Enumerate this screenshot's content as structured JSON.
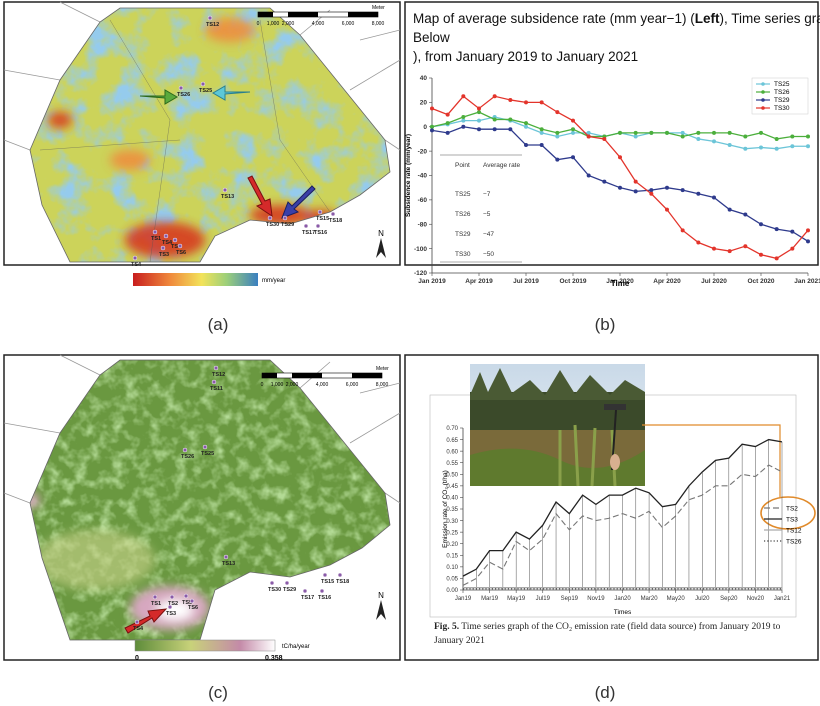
{
  "panel_labels": [
    "(a)",
    "(b)",
    "(c)",
    "(d)"
  ],
  "maps": [
    {
      "scale_bar": [
        "0",
        "1,000",
        "2,000",
        "4,000",
        "6,000",
        "8,000"
      ],
      "scale_unit": "Meter",
      "north": "N",
      "legend_unit": "mm/year",
      "points": [
        "TS12",
        "TS25",
        "TS26",
        "TS13",
        "TS30",
        "TS29",
        "TS15",
        "TS18",
        "TS17",
        "TS16",
        "TS1",
        "TS4",
        "TS2",
        "TS3",
        "TS6",
        "TS4"
      ]
    },
    {
      "scale_bar": [
        "0",
        "1,000",
        "2,000",
        "4,000",
        "6,000",
        "8,000"
      ],
      "scale_unit": "Meter",
      "north": "N",
      "legend_unit": "tC/ha/year",
      "colorbar_range": [
        0,
        0.358
      ],
      "points": [
        "TS12",
        "TS11",
        "TS26",
        "TS25",
        "TS13",
        "TS30",
        "TS29",
        "TS15",
        "TS18",
        "TS17",
        "TS16",
        "TS1",
        "TS2",
        "TS3",
        "TS5",
        "TS6",
        "TS4"
      ]
    }
  ],
  "chart_data": [
    {
      "type": "line",
      "title_parts": [
        "Map of average subsidence rate (mm year−1) (",
        "Left",
        "), Time series graph of the subsidence rate (",
        "Below",
        "), from January 2019 to January 2021"
      ],
      "ylabel": "Subsidence rate (mm/year)",
      "xlabel": "Time",
      "categories": [
        "Jan 2019",
        null,
        null,
        "Apr 2019",
        null,
        null,
        "Jul 2019",
        null,
        null,
        "Oct 2019",
        null,
        null,
        "Jan 2020",
        null,
        null,
        "Apr 2020",
        null,
        null,
        "Jul 2020",
        null,
        null,
        "Oct 2020",
        null,
        null,
        "Jan 2021"
      ],
      "series": [
        {
          "name": "TS25",
          "color": "#6cc5d8",
          "dash": "solid",
          "values": [
            0,
            2,
            5,
            5,
            8,
            5,
            0,
            -5,
            -8,
            -5,
            -5,
            -8,
            -5,
            -8,
            -5,
            -5,
            -5,
            -10,
            -12,
            -15,
            -18,
            -17,
            -18,
            -16,
            -16
          ]
        },
        {
          "name": "TS26",
          "color": "#4caf3c",
          "dash": "solid",
          "values": [
            0,
            3,
            8,
            12,
            6,
            6,
            3,
            -2,
            -5,
            -2,
            -8,
            -8,
            -5,
            -5,
            -5,
            -5,
            -8,
            -5,
            -5,
            -5,
            -8,
            -5,
            -10,
            -8,
            -8
          ]
        },
        {
          "name": "TS29",
          "color": "#2e3a8c",
          "dash": "solid",
          "values": [
            -3,
            -5,
            0,
            -2,
            -2,
            -2,
            -15,
            -15,
            -27,
            -25,
            -40,
            -45,
            -50,
            -53,
            -52,
            -50,
            -52,
            -55,
            -58,
            -68,
            -72,
            -80,
            -84,
            -86,
            -94
          ]
        },
        {
          "name": "TS30",
          "color": "#e3342b",
          "dash": "solid",
          "values": [
            15,
            10,
            25,
            15,
            25,
            22,
            20,
            20,
            12,
            5,
            -8,
            -10,
            -25,
            -45,
            -55,
            -68,
            -85,
            -95,
            -100,
            -102,
            -98,
            -105,
            -108,
            -100,
            -85
          ]
        }
      ],
      "markers": true,
      "ylim": [
        -120,
        40
      ],
      "yticks": [
        -120,
        -100,
        -80,
        -60,
        -40,
        -20,
        0,
        20,
        40
      ],
      "grid": false,
      "legend": "upper right",
      "table": {
        "header": [
          "Point",
          "Average rate"
        ],
        "rows": [
          [
            "TS25",
            "−7"
          ],
          [
            "TS26",
            "−5"
          ],
          [
            "TS29",
            "−47"
          ],
          [
            "TS30",
            "−50"
          ]
        ]
      }
    },
    {
      "type": "line",
      "ylabel": "Emission rate of CO₂ (t/ha)",
      "xlabel": "Times",
      "caption_label": "Fig. 5.",
      "caption": "Time series graph of the CO₂ emission rate (field data source) from January 2019 to January 2021",
      "categories": [
        "Jan19",
        null,
        "Mar19",
        null,
        "May19",
        null,
        "Jul19",
        null,
        "Sep19",
        null,
        "Nov19",
        null,
        "Jan20",
        null,
        "Mar20",
        null,
        "May20",
        null,
        "Jul20",
        null,
        "Sep20",
        null,
        "Nov20",
        null,
        "Jan21"
      ],
      "series": [
        {
          "name": "TS2",
          "color": "#777777",
          "dash": "dashed",
          "values": [
            0.02,
            0.05,
            0.12,
            0.09,
            0.21,
            0.17,
            0.22,
            0.33,
            0.26,
            0.32,
            0.3,
            0.31,
            0.33,
            0.31,
            0.34,
            0.27,
            0.32,
            0.39,
            0.41,
            0.45,
            0.45,
            0.5,
            0.49,
            0.54,
            0.51
          ]
        },
        {
          "name": "TS3",
          "color": "#222222",
          "dash": "solid",
          "values": [
            0.06,
            0.09,
            0.17,
            0.17,
            0.25,
            0.22,
            0.28,
            0.38,
            0.33,
            0.41,
            0.37,
            0.41,
            0.41,
            0.44,
            0.42,
            0.36,
            0.37,
            0.45,
            0.51,
            0.56,
            0.57,
            0.63,
            0.62,
            0.65,
            0.64
          ]
        },
        {
          "name": "TS12",
          "color": "#aaaaaa",
          "dash": "solid",
          "values": [
            0.01,
            0.01,
            0.01,
            0.01,
            0.01,
            0.01,
            0.01,
            0.01,
            0.01,
            0.01,
            0.01,
            0.01,
            0.01,
            0.01,
            0.01,
            0.01,
            0.01,
            0.01,
            0.01,
            0.01,
            0.01,
            0.01,
            0.01,
            0.01,
            0.01
          ]
        },
        {
          "name": "TS26",
          "color": "#444444",
          "dash": "dotted",
          "values": [
            0.005,
            0.005,
            0.005,
            0.005,
            0.005,
            0.005,
            0.005,
            0.005,
            0.005,
            0.005,
            0.005,
            0.005,
            0.005,
            0.005,
            0.005,
            0.005,
            0.005,
            0.005,
            0.005,
            0.005,
            0.005,
            0.005,
            0.005,
            0.005,
            0.005
          ]
        }
      ],
      "markers": false,
      "drop_lines": true,
      "ylim": [
        0,
        0.7
      ],
      "yticks": [
        {
          "value": 0,
          "label": "0.00"
        },
        {
          "value": 0.05,
          "label": "0.05"
        },
        {
          "value": 0.1,
          "label": "0.10"
        },
        {
          "value": 0.15,
          "label": "0.15"
        },
        {
          "value": 0.2,
          "label": "0.20"
        },
        {
          "value": 0.25,
          "label": "0.25"
        },
        {
          "value": 0.3,
          "label": "0.30"
        },
        {
          "value": 0.35,
          "label": "0.35"
        },
        {
          "value": 0.4,
          "label": "0.40"
        },
        {
          "value": 0.45,
          "label": "0.45"
        },
        {
          "value": 0.5,
          "label": "0.50"
        },
        {
          "value": 0.55,
          "label": "0.55"
        },
        {
          "value": 0.6,
          "label": "0.60"
        },
        {
          "value": 0.65,
          "label": "0.65"
        },
        {
          "value": 0.7,
          "label": "0.70"
        }
      ],
      "grid": false,
      "legend": "lower right"
    }
  ]
}
